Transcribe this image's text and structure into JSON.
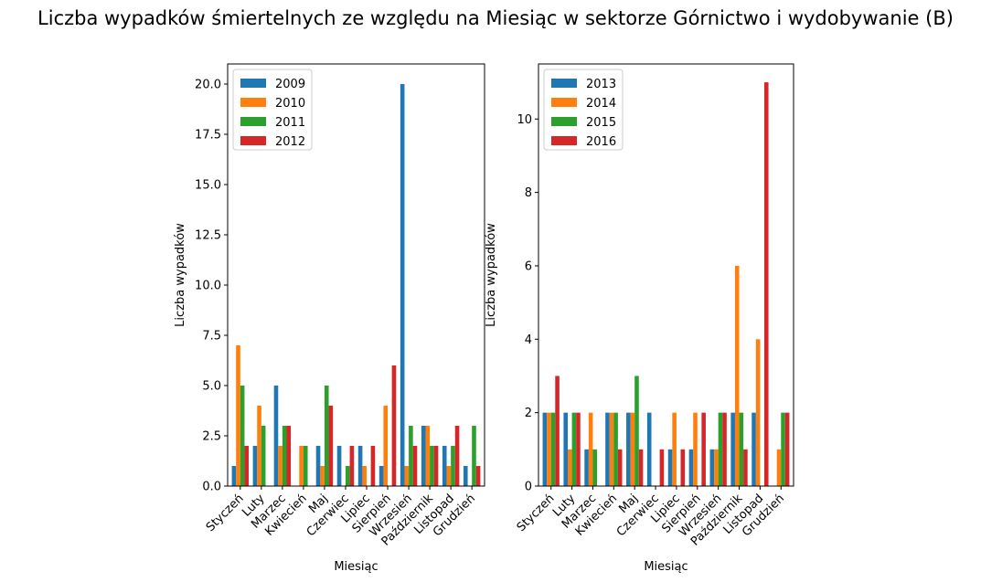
{
  "figure": {
    "title": "Liczba wypadków śmiertelnych ze względu na Miesiąc w sektorze Górnictwo i wydobywanie (B)"
  },
  "colors": {
    "series": [
      "#1f77b4",
      "#ff7f0e",
      "#2ca02c",
      "#d62728"
    ]
  },
  "chart_data": [
    {
      "type": "bar",
      "xlabel": "Miesiąc",
      "ylabel": "Liczba wypadków",
      "categories": [
        "Styczeń",
        "Luty",
        "Marzec",
        "Kwiecień",
        "Maj",
        "Czerwiec",
        "Lipiec",
        "Sierpień",
        "Wrzesień",
        "Październik",
        "Listopad",
        "Grudzień"
      ],
      "ylim": [
        0,
        21
      ],
      "yticks": [
        0,
        2.5,
        5,
        7.5,
        10,
        12.5,
        15,
        17.5,
        20
      ],
      "ytick_labels": [
        "0.0",
        "2.5",
        "5.0",
        "7.5",
        "10.0",
        "12.5",
        "15.0",
        "17.5",
        "20.0"
      ],
      "legend_position": "top-left",
      "grid": false,
      "series": [
        {
          "name": "2009",
          "values": [
            1,
            2,
            5,
            null,
            2,
            2,
            2,
            1,
            20,
            3,
            2,
            1
          ]
        },
        {
          "name": "2010",
          "values": [
            7,
            4,
            2,
            2,
            1,
            null,
            1,
            4,
            1,
            3,
            1,
            null
          ]
        },
        {
          "name": "2011",
          "values": [
            5,
            3,
            3,
            2,
            5,
            1,
            null,
            null,
            3,
            2,
            2,
            3
          ]
        },
        {
          "name": "2012",
          "values": [
            2,
            null,
            3,
            null,
            4,
            2,
            2,
            6,
            2,
            2,
            3,
            1
          ]
        }
      ]
    },
    {
      "type": "bar",
      "xlabel": "Miesiąc",
      "ylabel": "Liczba wypadków",
      "categories": [
        "Styczeń",
        "Luty",
        "Marzec",
        "Kwiecień",
        "Maj",
        "Czerwiec",
        "Lipiec",
        "Sierpień",
        "Wrzesień",
        "Październik",
        "Listopad",
        "Grudzień"
      ],
      "ylim": [
        0,
        11.5
      ],
      "yticks": [
        0,
        2,
        4,
        6,
        8,
        10
      ],
      "ytick_labels": [
        "0",
        "2",
        "4",
        "6",
        "8",
        "10"
      ],
      "legend_position": "top-left",
      "grid": false,
      "series": [
        {
          "name": "2013",
          "values": [
            2,
            2,
            1,
            2,
            2,
            2,
            1,
            1,
            1,
            2,
            2,
            null
          ]
        },
        {
          "name": "2014",
          "values": [
            2,
            1,
            2,
            2,
            2,
            null,
            2,
            2,
            1,
            6,
            4,
            1
          ]
        },
        {
          "name": "2015",
          "values": [
            2,
            2,
            1,
            2,
            3,
            null,
            null,
            null,
            2,
            2,
            null,
            2
          ]
        },
        {
          "name": "2016",
          "values": [
            3,
            2,
            null,
            1,
            1,
            1,
            1,
            2,
            2,
            1,
            11,
            2
          ]
        }
      ]
    }
  ]
}
